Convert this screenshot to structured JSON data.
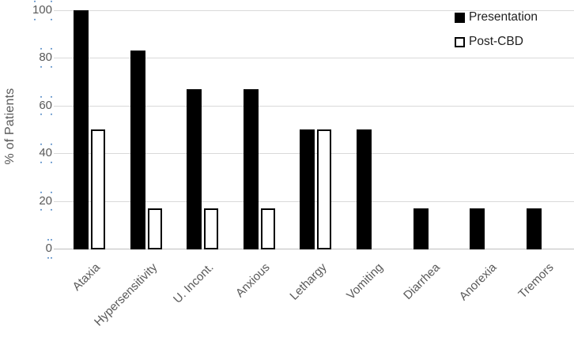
{
  "chart_data": {
    "type": "bar",
    "title": "",
    "ylabel": "% of Patients",
    "xlabel": "",
    "categories": [
      "Ataxia",
      "Hypersensitivity",
      "U. Incont.",
      "Anxious",
      "Lethargy",
      "Vomiting",
      "Diarrhea",
      "Anorexia",
      "Tremors"
    ],
    "series": [
      {
        "name": "Presentation",
        "fill": "#000000",
        "border": "#000000",
        "values": [
          100,
          83,
          67,
          67,
          50,
          50,
          17,
          17,
          17
        ]
      },
      {
        "name": "Post-CBD",
        "fill": "#ffffff",
        "border": "#000000",
        "values": [
          50,
          17,
          17,
          17,
          50,
          0,
          0,
          0,
          0
        ]
      }
    ],
    "ylim": [
      0,
      100
    ],
    "yticks": [
      0,
      20,
      40,
      60,
      80,
      100
    ],
    "grid": true,
    "legend_position": "top-right"
  },
  "colors": {
    "axis_text": "#595959",
    "legend_text": "#1f1f1f",
    "gridline": "#d9d9d9",
    "baseline": "#bfbfbf",
    "bar_black": "#000000",
    "bar_white": "#ffffff",
    "artifact_dot": "#4d86c4"
  }
}
